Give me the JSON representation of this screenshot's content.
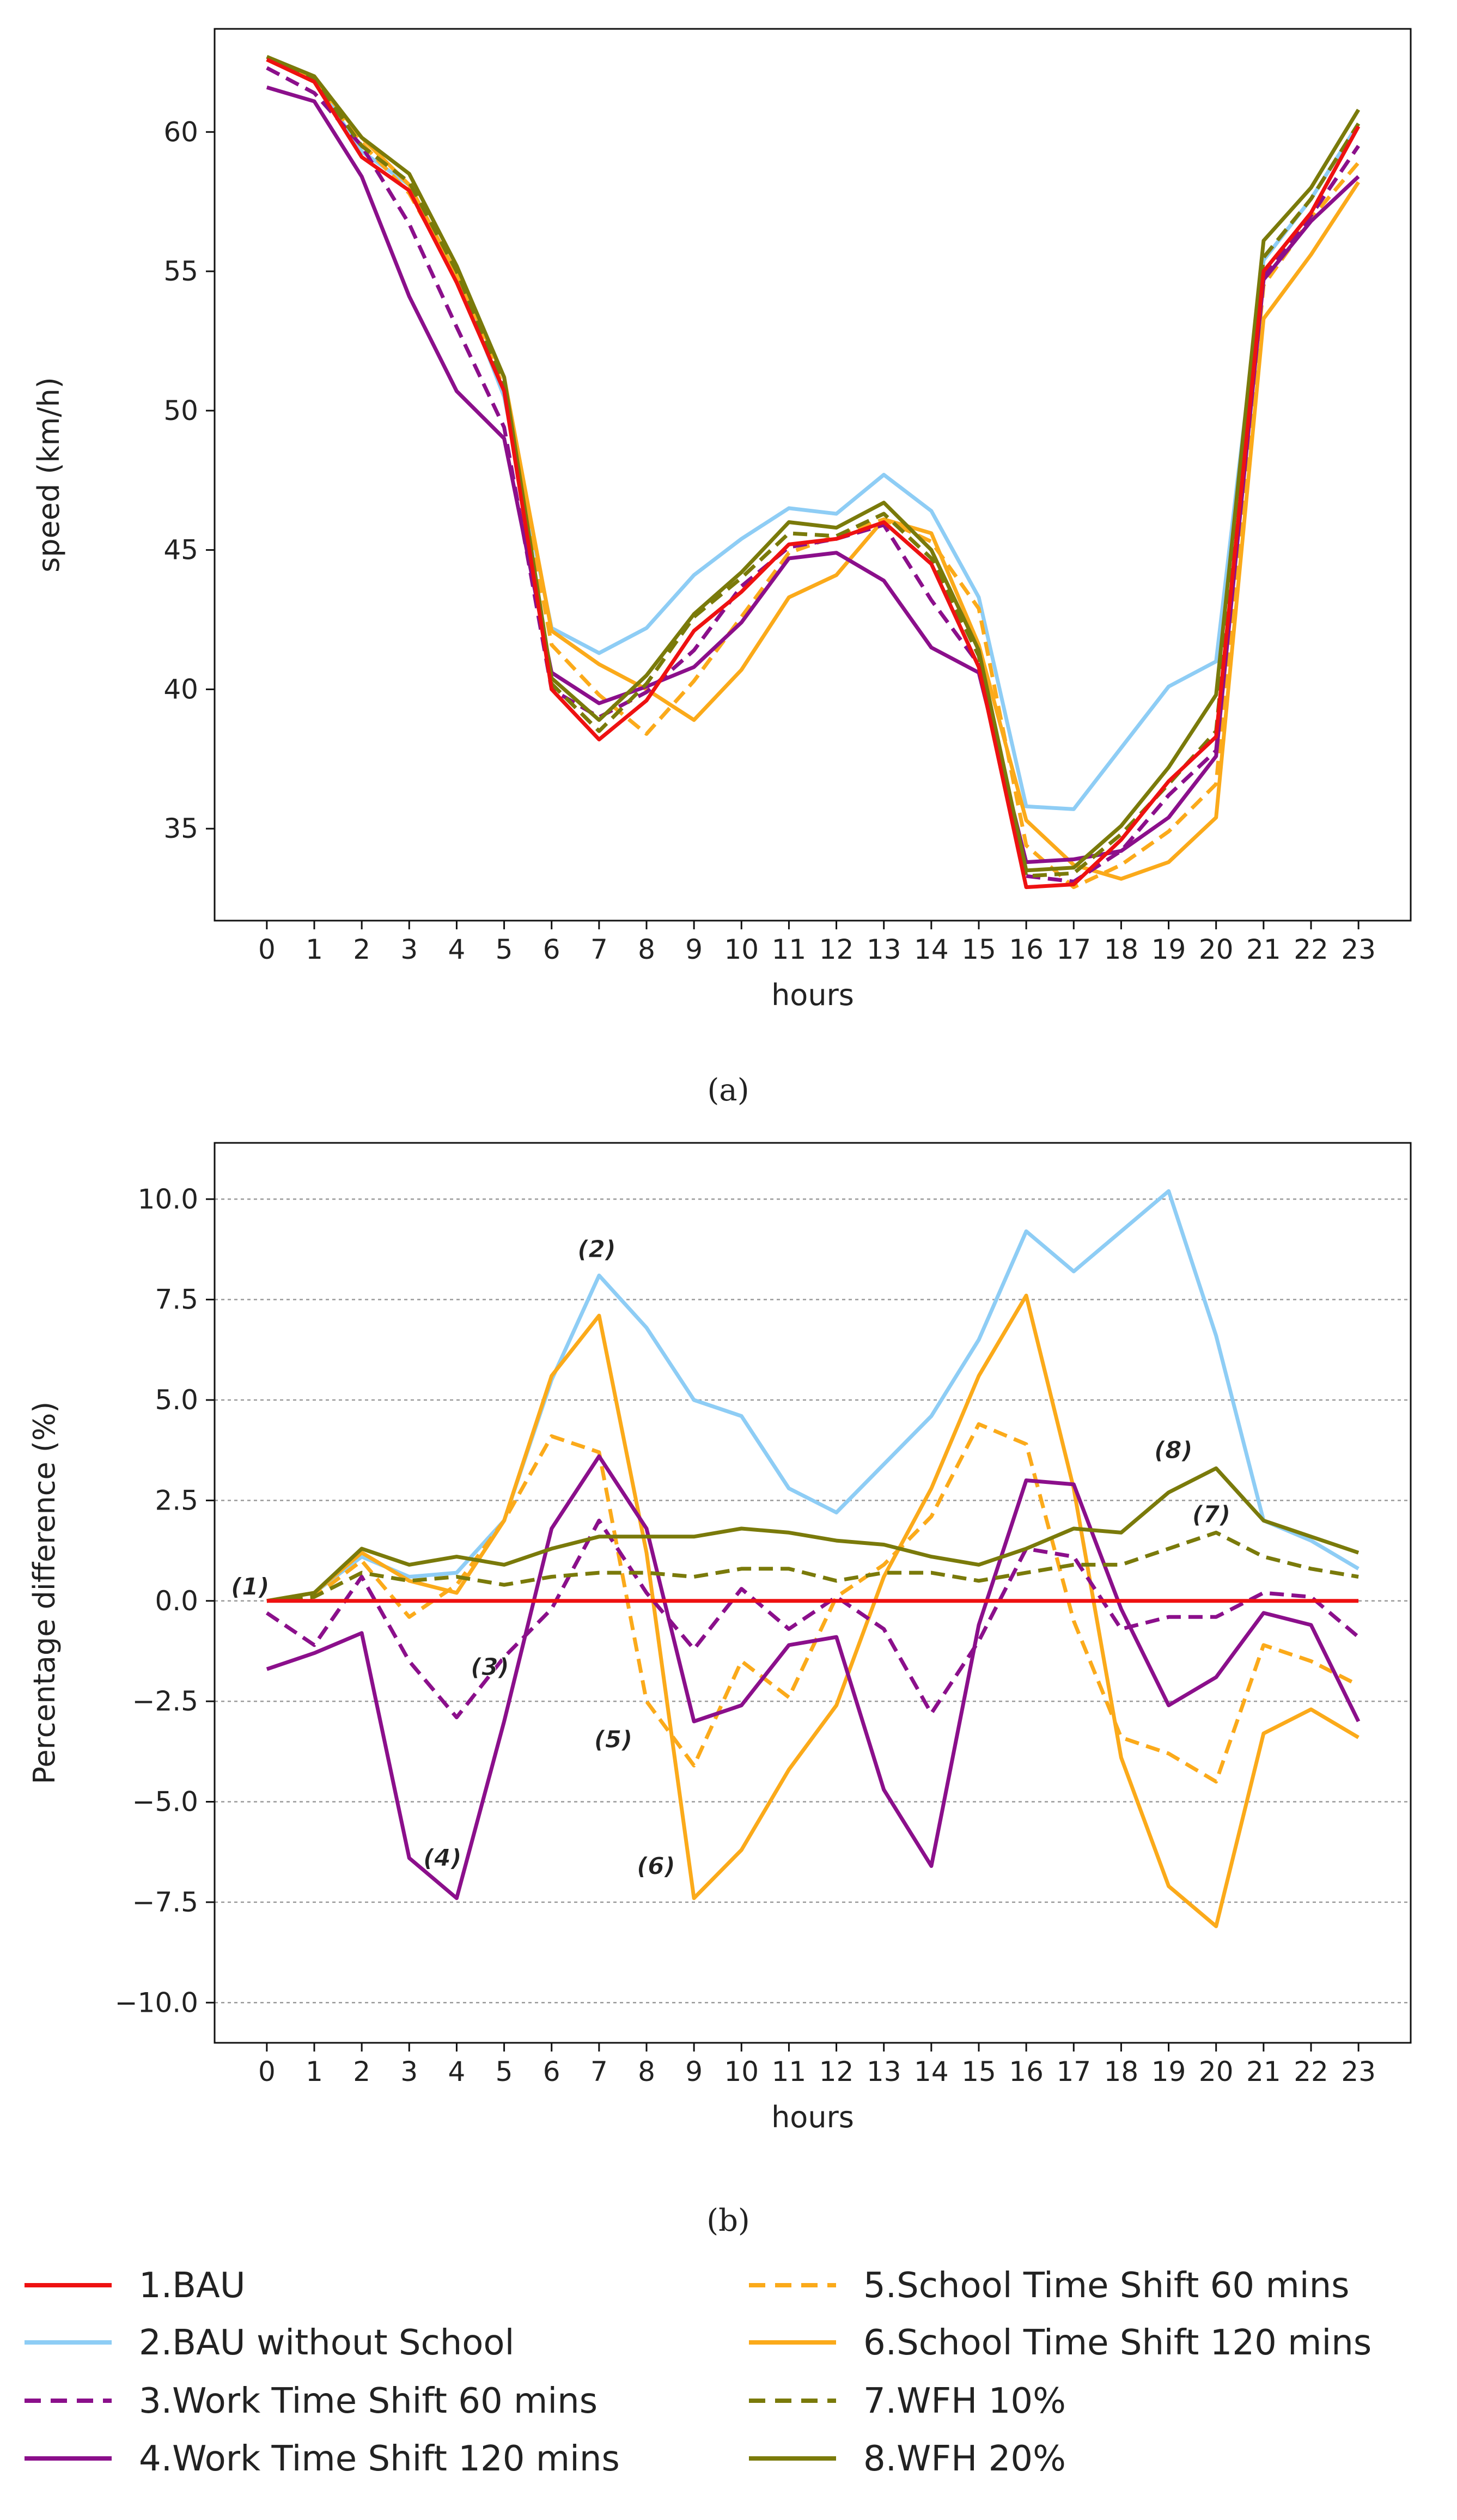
{
  "captions": {
    "a": "(a)",
    "b": "(b)"
  },
  "series_styles": {
    "BAU": {
      "color": "#ee1111",
      "dash": false
    },
    "BAU without School": {
      "color": "#8ecdf5",
      "dash": false
    },
    "Work Time Shift 60 mins": {
      "color": "#8b0f8b",
      "dash": true
    },
    "Work Time Shift 120 mins": {
      "color": "#8b0f8b",
      "dash": false
    },
    "School Time Shift 60 mins": {
      "color": "#fbaa1a",
      "dash": true
    },
    "School Time Shift 120 mins": {
      "color": "#fbaa1a",
      "dash": false
    },
    "WFH 10%": {
      "color": "#7a7a0a",
      "dash": true
    },
    "WFH 20%": {
      "color": "#7a7a0a",
      "dash": false
    }
  },
  "legend": [
    "1.BAU",
    "2.BAU without School",
    "3.Work Time Shift 60 mins",
    "4.Work Time Shift 120 mins",
    "5.School Time Shift 60 mins",
    "6.School Time Shift 120 mins",
    "7.WFH 10%",
    "8.WFH 20%"
  ],
  "chart_data": [
    {
      "type": "line",
      "id": "a",
      "xlabel": "hours",
      "ylabel": "speed (km/h)",
      "x": [
        0,
        1,
        2,
        3,
        4,
        5,
        6,
        7,
        8,
        9,
        10,
        11,
        12,
        13,
        14,
        15,
        16,
        17,
        18,
        19,
        20,
        21,
        22,
        23
      ],
      "xticks": [
        "0",
        "1",
        "2",
        "3",
        "4",
        "5",
        "6",
        "7",
        "8",
        "9",
        "10",
        "11",
        "12",
        "13",
        "14",
        "15",
        "16",
        "17",
        "18",
        "19",
        "20",
        "21",
        "22",
        "23"
      ],
      "xlim": [
        -1.1,
        24.1
      ],
      "ylim": [
        31.7,
        63.7
      ],
      "yticks": [
        35,
        40,
        45,
        50,
        55,
        60
      ],
      "yticklabels": [
        "35",
        "40",
        "45",
        "50",
        "55",
        "60"
      ],
      "grid": false,
      "series": [
        {
          "name": "BAU without School",
          "values": [
            62.6,
            61.9,
            59.3,
            58.1,
            54.9,
            50.5,
            42.2,
            41.3,
            42.2,
            44.1,
            45.4,
            46.5,
            46.3,
            47.7,
            46.4,
            43.3,
            35.8,
            35.7,
            37.9,
            40.1,
            41.0,
            55.4,
            57.6,
            60.3
          ]
        },
        {
          "name": "School Time Shift 60 mins",
          "values": [
            62.6,
            61.8,
            59.6,
            57.8,
            54.8,
            50.8,
            41.6,
            39.8,
            38.4,
            40.3,
            42.6,
            44.9,
            45.5,
            46.1,
            45.3,
            42.9,
            34.4,
            32.9,
            33.7,
            34.9,
            36.6,
            54.5,
            56.9,
            58.9
          ]
        },
        {
          "name": "School Time Shift 120 mins",
          "values": [
            62.6,
            61.9,
            59.8,
            58.1,
            54.9,
            51.2,
            42.1,
            40.9,
            40.0,
            38.9,
            40.7,
            43.3,
            44.1,
            46.1,
            45.6,
            41.6,
            35.3,
            33.7,
            33.2,
            33.8,
            35.4,
            53.3,
            55.6,
            58.2
          ]
        },
        {
          "name": "Work Time Shift 60 mins",
          "values": [
            62.3,
            61.4,
            59.5,
            56.7,
            53.0,
            49.4,
            40.0,
            39.0,
            39.9,
            41.4,
            43.7,
            45.1,
            45.4,
            45.9,
            43.2,
            40.9,
            33.3,
            33.1,
            34.2,
            36.2,
            37.8,
            54.9,
            57.0,
            59.5
          ]
        },
        {
          "name": "Work Time Shift 120 mins",
          "values": [
            61.6,
            61.1,
            58.4,
            54.1,
            50.7,
            49.0,
            40.6,
            39.5,
            40.1,
            40.8,
            42.4,
            44.7,
            44.9,
            43.9,
            41.5,
            40.6,
            33.8,
            33.9,
            34.2,
            35.4,
            37.6,
            54.7,
            56.8,
            58.4
          ]
        },
        {
          "name": "WFH 10%",
          "values": [
            62.7,
            61.9,
            59.5,
            58.2,
            55.0,
            50.9,
            40.2,
            38.5,
            40.2,
            42.6,
            44.0,
            45.6,
            45.5,
            46.3,
            44.7,
            41.2,
            33.3,
            33.4,
            34.8,
            36.6,
            38.5,
            55.5,
            57.6,
            60.3
          ]
        },
        {
          "name": "WFH 20%",
          "values": [
            62.7,
            62.0,
            59.8,
            58.5,
            55.2,
            51.2,
            40.4,
            38.9,
            40.5,
            42.7,
            44.2,
            46.0,
            45.8,
            46.7,
            45.0,
            41.4,
            33.5,
            33.6,
            35.1,
            37.2,
            39.8,
            56.1,
            58.0,
            60.8
          ]
        },
        {
          "name": "BAU",
          "values": [
            62.6,
            61.8,
            59.1,
            57.9,
            54.6,
            50.7,
            40.0,
            38.2,
            39.6,
            42.1,
            43.5,
            45.2,
            45.4,
            46.0,
            44.5,
            40.8,
            32.9,
            33.0,
            34.6,
            36.7,
            38.3,
            55.0,
            57.1,
            60.2
          ]
        }
      ]
    },
    {
      "type": "line",
      "id": "b",
      "xlabel": "hours",
      "ylabel": "Percentage difference (%)",
      "x": [
        0,
        1,
        2,
        3,
        4,
        5,
        6,
        7,
        8,
        9,
        10,
        11,
        12,
        13,
        14,
        15,
        16,
        17,
        18,
        19,
        20,
        21,
        22,
        23
      ],
      "xticks": [
        "0",
        "1",
        "2",
        "3",
        "4",
        "5",
        "6",
        "7",
        "8",
        "9",
        "10",
        "11",
        "12",
        "13",
        "14",
        "15",
        "16",
        "17",
        "18",
        "19",
        "20",
        "21",
        "22",
        "23"
      ],
      "xlim": [
        -1.1,
        24.1
      ],
      "ylim": [
        -11.0,
        11.4
      ],
      "yticks": [
        -10.0,
        -7.5,
        -5.0,
        -2.5,
        0.0,
        2.5,
        5.0,
        7.5,
        10.0
      ],
      "yticklabels": [
        "−10.0",
        "−7.5",
        "−5.0",
        "−2.5",
        "0.0",
        "2.5",
        "5.0",
        "7.5",
        "10.0"
      ],
      "grid": true,
      "annotations": [
        {
          "text": "(1)",
          "x": -0.35,
          "y": 0.15
        },
        {
          "text": "(2)",
          "x": 6.95,
          "y": 8.55
        },
        {
          "text": "(3)",
          "x": 4.7,
          "y": -1.85
        },
        {
          "text": "(4)",
          "x": 3.7,
          "y": -6.6
        },
        {
          "text": "(5)",
          "x": 7.3,
          "y": -3.65
        },
        {
          "text": "(6)",
          "x": 8.2,
          "y": -6.8
        },
        {
          "text": "(7)",
          "x": 19.9,
          "y": 1.95
        },
        {
          "text": "(8)",
          "x": 19.1,
          "y": 3.55
        }
      ],
      "series": [
        {
          "name": "BAU without School",
          "values": [
            0.0,
            0.2,
            1.1,
            0.6,
            0.7,
            2.0,
            5.5,
            8.1,
            6.8,
            5.0,
            4.6,
            2.8,
            2.2,
            3.4,
            4.6,
            6.5,
            9.2,
            8.2,
            9.2,
            10.2,
            6.6,
            2.0,
            1.5,
            0.8
          ]
        },
        {
          "name": "School Time Shift 60 mins",
          "values": [
            0.0,
            0.1,
            1.0,
            -0.4,
            0.4,
            2.0,
            4.1,
            3.7,
            -2.5,
            -4.1,
            -1.5,
            -2.4,
            0.1,
            0.9,
            2.1,
            4.4,
            3.9,
            -0.5,
            -3.4,
            -3.8,
            -4.5,
            -1.1,
            -1.5,
            -2.1
          ]
        },
        {
          "name": "School Time Shift 120 mins",
          "values": [
            0.0,
            0.2,
            1.2,
            0.5,
            0.2,
            2.0,
            5.6,
            7.1,
            1.2,
            -7.4,
            -6.2,
            -4.2,
            -2.6,
            0.6,
            2.8,
            5.6,
            7.6,
            2.8,
            -3.9,
            -7.1,
            -8.1,
            -3.3,
            -2.7,
            -3.4
          ]
        },
        {
          "name": "Work Time Shift 60 mins",
          "values": [
            -0.3,
            -1.1,
            0.6,
            -1.5,
            -2.9,
            -1.4,
            -0.2,
            2.0,
            0.2,
            -1.2,
            0.3,
            -0.7,
            0.1,
            -0.7,
            -2.8,
            -1.0,
            1.3,
            1.1,
            -0.7,
            -0.4,
            -0.4,
            0.2,
            0.1,
            -0.9
          ]
        },
        {
          "name": "Work Time Shift 120 mins",
          "values": [
            -1.7,
            -1.3,
            -0.8,
            -6.4,
            -7.4,
            -3.0,
            1.8,
            3.6,
            1.8,
            -3.0,
            -2.6,
            -1.1,
            -0.9,
            -4.7,
            -6.6,
            -0.6,
            3.0,
            2.9,
            -0.2,
            -2.6,
            -1.9,
            -0.3,
            -0.6,
            -3.0
          ]
        },
        {
          "name": "WFH 10%",
          "values": [
            0.0,
            0.1,
            0.7,
            0.5,
            0.6,
            0.4,
            0.6,
            0.7,
            0.7,
            0.6,
            0.8,
            0.8,
            0.5,
            0.7,
            0.7,
            0.5,
            0.7,
            0.9,
            0.9,
            1.3,
            1.7,
            1.1,
            0.8,
            0.6
          ]
        },
        {
          "name": "WFH 20%",
          "values": [
            0.0,
            0.2,
            1.3,
            0.9,
            1.1,
            0.9,
            1.3,
            1.6,
            1.6,
            1.6,
            1.8,
            1.7,
            1.5,
            1.4,
            1.1,
            0.9,
            1.3,
            1.8,
            1.7,
            2.7,
            3.3,
            2.0,
            1.6,
            1.2
          ]
        },
        {
          "name": "BAU",
          "values": [
            0,
            0,
            0,
            0,
            0,
            0,
            0,
            0,
            0,
            0,
            0,
            0,
            0,
            0,
            0,
            0,
            0,
            0,
            0,
            0,
            0,
            0,
            0,
            0
          ]
        }
      ]
    }
  ]
}
